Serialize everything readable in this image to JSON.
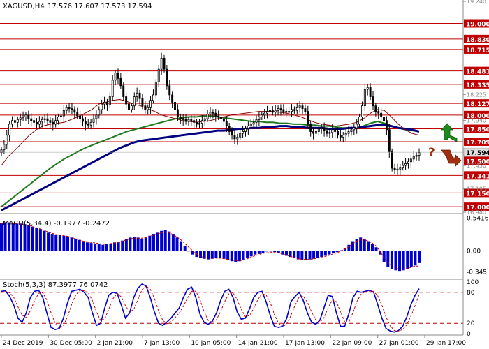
{
  "header": {
    "symbol": "XAGUSD,H4",
    "ohlc": "17.576 17.607 17.573 17.594"
  },
  "colors": {
    "candle": "#000000",
    "ma_green": "#1e7a1e",
    "ma_blue": "#000080",
    "ma_red": "#8b0000",
    "level_line": "#c00000",
    "level_label_bg": "#c00000",
    "current_label_bg": "#e0e0e0",
    "macd_hist": "#0000cc",
    "macd_signal": "#cc0000",
    "stoch_main": "#0000cc",
    "stoch_signal": "#cc0000",
    "arrow_up": "#1e8a1e",
    "arrow_down": "#a03010",
    "question_mark": "#a03010"
  },
  "chart_data": [
    {
      "type": "candlestick",
      "title": "XAGUSD,H4",
      "ylim": [
        16.94,
        19.24
      ],
      "price_scale_ticks": [
        "19.240",
        "18.225",
        "17.940",
        "17.450",
        "17.195",
        "16.940"
      ],
      "levels": [
        {
          "label": "19.000",
          "value": 19.0
        },
        {
          "label": "18.830",
          "value": 18.83
        },
        {
          "label": "18.715",
          "value": 18.715
        },
        {
          "label": "18.481",
          "value": 18.481
        },
        {
          "label": "18.335",
          "value": 18.335
        },
        {
          "label": "18.127",
          "value": 18.127
        },
        {
          "label": "18.000",
          "value": 18.0
        },
        {
          "label": "17.850",
          "value": 17.85
        },
        {
          "label": "17.709",
          "value": 17.709
        },
        {
          "label": "17.500",
          "value": 17.5
        },
        {
          "label": "17.341",
          "value": 17.341
        },
        {
          "label": "17.150",
          "value": 17.15
        },
        {
          "label": "17.000",
          "value": 17.0
        }
      ],
      "current_price": {
        "label": "17.594",
        "value": 17.594
      },
      "x_labels": [
        "24 Dec 2019",
        "30 Dec 05:00",
        "2 Jan 21:00",
        "7 Jan 13:00",
        "10 Jan 05:00",
        "14 Jan 21:00",
        "17 Jan 13:00",
        "22 Jan 09:00",
        "27 Jan 01:00",
        "29 Jan 17:00"
      ],
      "close": [
        17.62,
        17.68,
        17.78,
        17.9,
        17.94,
        17.92,
        17.95,
        17.97,
        17.98,
        18.0,
        17.96,
        17.94,
        17.92,
        17.9,
        17.93,
        17.95,
        17.96,
        17.94,
        17.92,
        17.9,
        17.94,
        17.98,
        17.99,
        18.05,
        18.08,
        18.07,
        18.06,
        18.03,
        17.99,
        17.96,
        17.93,
        17.9,
        17.89,
        17.92,
        17.96,
        18.0,
        18.06,
        18.12,
        18.14,
        18.11,
        18.2,
        18.38,
        18.46,
        18.4,
        18.32,
        18.2,
        18.12,
        18.06,
        18.1,
        18.2,
        18.24,
        18.18,
        18.1,
        18.06,
        18.08,
        18.16,
        18.22,
        18.36,
        18.5,
        18.62,
        18.5,
        18.32,
        18.22,
        18.14,
        18.06,
        17.98,
        17.96,
        17.95,
        17.93,
        17.95,
        17.94,
        17.92,
        17.9,
        17.91,
        17.94,
        17.96,
        18.01,
        18.03,
        18.02,
        17.99,
        17.98,
        17.96,
        17.93,
        17.88,
        17.82,
        17.78,
        17.74,
        17.76,
        17.8,
        17.82,
        17.85,
        17.88,
        17.9,
        17.92,
        17.95,
        17.98,
        18.0,
        18.02,
        18.04,
        18.05,
        18.03,
        18.05,
        18.07,
        18.06,
        18.04,
        18.03,
        18.04,
        18.06,
        18.05,
        18.08,
        18.1,
        18.07,
        18.04,
        17.9,
        17.82,
        17.8,
        17.82,
        17.85,
        17.86,
        17.83,
        17.8,
        17.81,
        17.84,
        17.82,
        17.78,
        17.76,
        17.78,
        17.8,
        17.82,
        17.84,
        17.86,
        17.9,
        17.98,
        18.1,
        18.28,
        18.3,
        18.2,
        18.1,
        18.04,
        18.02,
        17.98,
        17.94,
        17.84,
        17.6,
        17.42,
        17.4,
        17.41,
        17.43,
        17.45,
        17.47,
        17.49,
        17.52,
        17.55,
        17.56,
        17.59
      ],
      "indicators": [
        {
          "kind": "moving-average",
          "color": "ma_green",
          "values": [
            17.0,
            17.06,
            17.12,
            17.18,
            17.24,
            17.3,
            17.36,
            17.42,
            17.47,
            17.52,
            17.56,
            17.6,
            17.64,
            17.67,
            17.7,
            17.73,
            17.76,
            17.79,
            17.82,
            17.84,
            17.86,
            17.88,
            17.9,
            17.92,
            17.94,
            17.96,
            17.97,
            17.98,
            17.98,
            17.99,
            17.99,
            17.98,
            17.97,
            17.96,
            17.95,
            17.94,
            17.93,
            17.93,
            17.92,
            17.92,
            17.91,
            17.91,
            17.9,
            17.9,
            17.89,
            17.89,
            17.88,
            17.88,
            17.87,
            17.86,
            17.86,
            17.86,
            17.88,
            17.91,
            17.93,
            17.91,
            17.88,
            17.86,
            17.84,
            17.83,
            17.82
          ]
        },
        {
          "kind": "moving-average",
          "color": "ma_blue",
          "values": [
            16.96,
            17.0,
            17.04,
            17.08,
            17.12,
            17.16,
            17.2,
            17.24,
            17.28,
            17.32,
            17.36,
            17.4,
            17.44,
            17.48,
            17.52,
            17.56,
            17.6,
            17.64,
            17.67,
            17.7,
            17.72,
            17.73,
            17.74,
            17.75,
            17.76,
            17.77,
            17.78,
            17.79,
            17.8,
            17.81,
            17.82,
            17.83,
            17.83,
            17.84,
            17.85,
            17.85,
            17.86,
            17.86,
            17.87,
            17.87,
            17.88,
            17.88,
            17.87,
            17.87,
            17.86,
            17.86,
            17.86,
            17.85,
            17.85,
            17.85,
            17.86,
            17.86,
            17.87,
            17.88,
            17.89,
            17.89,
            17.88,
            17.86,
            17.85,
            17.84,
            17.82
          ]
        },
        {
          "kind": "moving-average",
          "color": "ma_red",
          "values": [
            17.45,
            17.55,
            17.62,
            17.7,
            17.78,
            17.84,
            17.88,
            17.9,
            17.91,
            17.92,
            17.95,
            17.98,
            18.02,
            18.06,
            18.12,
            18.14,
            18.16,
            18.17,
            18.15,
            18.12,
            18.1,
            18.07,
            18.04,
            18.0,
            17.98,
            17.96,
            17.94,
            17.93,
            17.92,
            17.93,
            17.94,
            17.96,
            17.98,
            18.0,
            18.01,
            18.02,
            18.03,
            18.04,
            18.04,
            18.04,
            18.03,
            18.02,
            18.0,
            17.98,
            17.95,
            17.92,
            17.9,
            17.89,
            17.88,
            17.89,
            17.9,
            17.92,
            17.96,
            18.02,
            18.06,
            18.05,
            17.98,
            17.9,
            17.84,
            17.8,
            17.78
          ]
        }
      ]
    },
    {
      "type": "bar",
      "title": "MACD(5,34,4) -0.1977 -0.2472",
      "ylim": [
        -0.42,
        0.58
      ],
      "y_ticks": [
        "0.5416",
        "0.00",
        "-0.345"
      ],
      "series": [
        {
          "name": "MACD",
          "values": [
            0.46,
            0.47,
            0.47,
            0.46,
            0.45,
            0.45,
            0.44,
            0.42,
            0.4,
            0.38,
            0.36,
            0.33,
            0.3,
            0.28,
            0.27,
            0.26,
            0.25,
            0.24,
            0.22,
            0.2,
            0.18,
            0.16,
            0.14,
            0.13,
            0.12,
            0.11,
            0.1,
            0.11,
            0.12,
            0.14,
            0.15,
            0.17,
            0.2,
            0.22,
            0.23,
            0.22,
            0.2,
            0.22,
            0.25,
            0.28,
            0.3,
            0.33,
            0.34,
            0.32,
            0.28,
            0.22,
            0.16,
            0.08,
            0.0,
            -0.06,
            -0.1,
            -0.12,
            -0.13,
            -0.14,
            -0.13,
            -0.12,
            -0.12,
            -0.13,
            -0.15,
            -0.17,
            -0.18,
            -0.17,
            -0.15,
            -0.12,
            -0.09,
            -0.06,
            -0.05,
            -0.03,
            -0.01,
            0.0,
            -0.02,
            -0.04,
            -0.06,
            -0.08,
            -0.1,
            -0.12,
            -0.14,
            -0.15,
            -0.15,
            -0.14,
            -0.13,
            -0.12,
            -0.1,
            -0.08,
            -0.06,
            -0.04,
            -0.02,
            0.01,
            0.05,
            0.1,
            0.16,
            0.2,
            0.22,
            0.2,
            0.16,
            0.12,
            0.06,
            -0.06,
            -0.18,
            -0.26,
            -0.3,
            -0.32,
            -0.33,
            -0.32,
            -0.3,
            -0.27,
            -0.24,
            -0.2
          ]
        },
        {
          "name": "Signal",
          "values": [
            0.45,
            0.46,
            0.46,
            0.45,
            0.45,
            0.44,
            0.43,
            0.42,
            0.4,
            0.38,
            0.36,
            0.34,
            0.31,
            0.29,
            0.27,
            0.26,
            0.25,
            0.24,
            0.22,
            0.2,
            0.18,
            0.16,
            0.15,
            0.14,
            0.13,
            0.12,
            0.11,
            0.11,
            0.12,
            0.13,
            0.14,
            0.16,
            0.18,
            0.2,
            0.21,
            0.21,
            0.21,
            0.22,
            0.24,
            0.26,
            0.28,
            0.3,
            0.31,
            0.3,
            0.27,
            0.23,
            0.18,
            0.12,
            0.06,
            0.0,
            -0.05,
            -0.09,
            -0.11,
            -0.12,
            -0.12,
            -0.12,
            -0.12,
            -0.13,
            -0.14,
            -0.15,
            -0.16,
            -0.16,
            -0.15,
            -0.13,
            -0.1,
            -0.08,
            -0.06,
            -0.04,
            -0.03,
            -0.02,
            -0.02,
            -0.03,
            -0.05,
            -0.07,
            -0.09,
            -0.11,
            -0.13,
            -0.14,
            -0.14,
            -0.14,
            -0.13,
            -0.12,
            -0.1,
            -0.09,
            -0.07,
            -0.05,
            -0.03,
            0.0,
            0.03,
            0.07,
            0.12,
            0.16,
            0.18,
            0.18,
            0.16,
            0.13,
            0.08,
            -0.01,
            -0.11,
            -0.19,
            -0.25,
            -0.28,
            -0.3,
            -0.3,
            -0.29,
            -0.27,
            -0.25,
            -0.25
          ]
        }
      ]
    },
    {
      "type": "line",
      "title": "Stoch(5,3,3) 87.3977 76.0742",
      "ylim": [
        0,
        100
      ],
      "y_ticks": [
        "100",
        "80",
        "20",
        "0"
      ],
      "levels": [
        80,
        20
      ],
      "series": [
        {
          "name": "Main",
          "values": [
            82,
            83,
            72,
            55,
            30,
            22,
            40,
            70,
            82,
            84,
            70,
            40,
            12,
            8,
            10,
            30,
            60,
            82,
            84,
            86,
            80,
            70,
            40,
            16,
            20,
            50,
            75,
            80,
            78,
            55,
            30,
            40,
            70,
            88,
            96,
            92,
            70,
            42,
            20,
            16,
            22,
            30,
            40,
            50,
            70,
            86,
            90,
            70,
            38,
            22,
            18,
            24,
            40,
            64,
            82,
            86,
            70,
            42,
            28,
            30,
            48,
            70,
            80,
            82,
            62,
            35,
            14,
            12,
            14,
            30,
            62,
            72,
            80,
            64,
            40,
            22,
            18,
            26,
            50,
            74,
            72,
            40,
            14,
            14,
            38,
            70,
            82,
            80,
            82,
            84,
            80,
            56,
            30,
            10,
            5,
            3,
            6,
            14,
            32,
            56,
            74,
            87
          ]
        },
        {
          "name": "Signal",
          "values": [
            80,
            82,
            79,
            70,
            52,
            36,
            31,
            44,
            64,
            78,
            79,
            65,
            41,
            20,
            10,
            16,
            33,
            57,
            75,
            84,
            83,
            79,
            64,
            42,
            25,
            29,
            48,
            68,
            78,
            71,
            54,
            42,
            47,
            66,
            85,
            92,
            86,
            68,
            44,
            26,
            19,
            23,
            31,
            40,
            53,
            69,
            82,
            82,
            66,
            43,
            26,
            21,
            27,
            43,
            62,
            77,
            79,
            66,
            47,
            33,
            35,
            49,
            66,
            77,
            75,
            60,
            37,
            20,
            13,
            19,
            35,
            55,
            71,
            72,
            61,
            42,
            27,
            22,
            31,
            50,
            65,
            62,
            42,
            23,
            22,
            41,
            63,
            77,
            81,
            82,
            82,
            73,
            55,
            32,
            15,
            6,
            5,
            8,
            17,
            34,
            54,
            76
          ]
        }
      ]
    }
  ]
}
